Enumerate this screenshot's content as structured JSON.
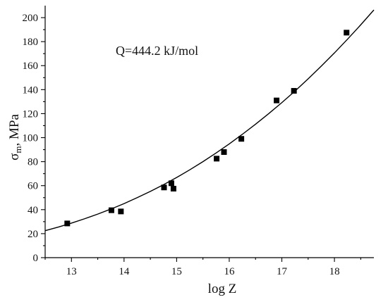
{
  "chart_data": {
    "type": "scatter",
    "title": "",
    "xlabel": "log Z",
    "ylabel": "σm, MPa",
    "ylabel_main": "σ",
    "ylabel_sub": "m",
    "ylabel_unit": ", MPa",
    "annotation": "Q=444.2 kJ/mol",
    "xlim": [
      12.5,
      18.75
    ],
    "ylim": [
      0,
      210
    ],
    "x_ticks": [
      13,
      14,
      15,
      16,
      17,
      18
    ],
    "y_ticks": [
      0,
      20,
      40,
      60,
      80,
      100,
      120,
      140,
      160,
      180,
      200
    ],
    "grid": false,
    "series": [
      {
        "marker": "square",
        "x": [
          12.92,
          13.76,
          13.94,
          14.76,
          14.9,
          14.94,
          15.76,
          15.9,
          16.23,
          16.9,
          17.23,
          18.23
        ],
        "y": [
          28.5,
          39.5,
          38.5,
          58.5,
          62.0,
          57.5,
          82.5,
          88.0,
          99.0,
          131.0,
          139.0,
          187.5
        ]
      }
    ],
    "fit_curve": {
      "x": [
        12.5,
        12.75,
        13,
        13.25,
        13.5,
        13.75,
        14,
        14.25,
        14.5,
        14.75,
        15,
        15.25,
        15.5,
        15.75,
        16,
        16.25,
        16.5,
        16.75,
        17,
        17.25,
        17.5,
        17.75,
        18,
        18.25,
        18.5,
        18.75
      ],
      "y": [
        22.5,
        25.5,
        28.8,
        32.4,
        36.3,
        40.5,
        45.0,
        50.0,
        55.2,
        60.8,
        66.8,
        73.2,
        80.0,
        87.2,
        94.8,
        102.8,
        111.2,
        120.0,
        129.2,
        138.8,
        149.0,
        159.6,
        170.6,
        182.1,
        194.0,
        206.4
      ]
    }
  }
}
